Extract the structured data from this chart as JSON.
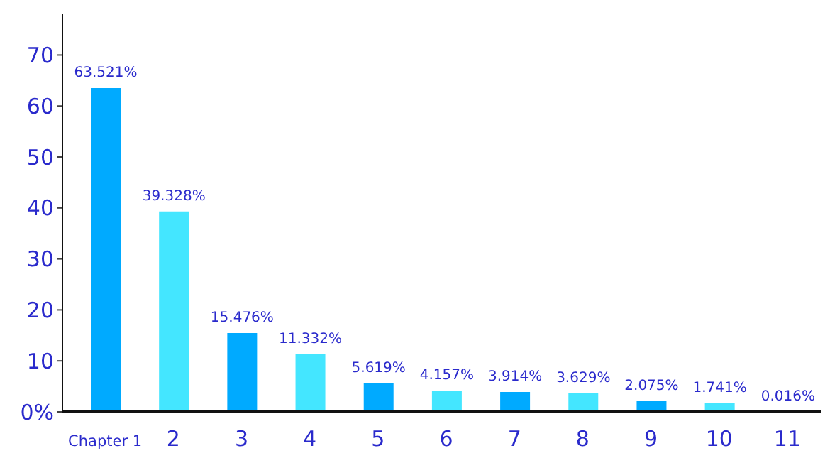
{
  "chart_data": {
    "type": "bar",
    "categories": [
      "Chapter 1",
      "2",
      "3",
      "4",
      "5",
      "6",
      "7",
      "8",
      "9",
      "10",
      "11"
    ],
    "values": [
      63.521,
      39.328,
      15.476,
      11.332,
      5.619,
      4.157,
      3.914,
      3.629,
      2.075,
      1.741,
      0.016
    ],
    "colors": [
      "#00aaff",
      "#44e6ff",
      "#00aaff",
      "#44e6ff",
      "#00aaff",
      "#44e6ff",
      "#00aaff",
      "#44e6ff",
      "#00aaff",
      "#44e6ff",
      "#00aaff"
    ],
    "value_labels": [
      "63.521%",
      "39.328%",
      "15.476%",
      "11.332%",
      "5.619%",
      "4.157%",
      "3.914%",
      "3.629%",
      "2.075%",
      "1.741%",
      "0.016%"
    ],
    "ylim": [
      0,
      78
    ],
    "yticks": [
      {
        "value": 0,
        "label": "0%"
      },
      10,
      20,
      30,
      40,
      50,
      60,
      70
    ],
    "grid": false,
    "legend": false
  }
}
